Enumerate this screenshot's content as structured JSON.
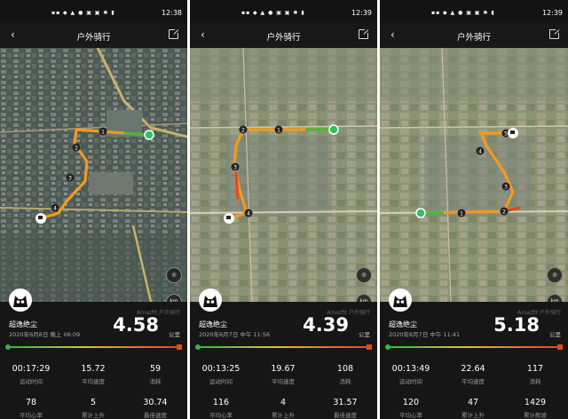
{
  "panels": [
    {
      "status": {
        "time": "12:38"
      },
      "nav": {
        "title": "户外骑行"
      },
      "user": {
        "name": "超逸绝尘",
        "datetime": "2020年6月8日 晚上 06:09"
      },
      "brand": "Amazfit 户外骑行",
      "distance": {
        "value": "4.58",
        "unit": "公里"
      },
      "stats": [
        {
          "value": "00:17:29",
          "label": "运动时间"
        },
        {
          "value": "15.72",
          "label": "平均速度"
        },
        {
          "value": "59",
          "label": "消耗"
        },
        {
          "value": "78",
          "label": "平均心率"
        },
        {
          "value": "5",
          "label": "累计上升"
        },
        {
          "value": "30.74",
          "label": "最佳速度"
        }
      ],
      "route_markers": [
        "1",
        "2",
        "3",
        "4"
      ],
      "map_buttons": {
        "km": "km"
      }
    },
    {
      "status": {
        "time": "12:39"
      },
      "nav": {
        "title": "户外骑行"
      },
      "user": {
        "name": "超逸绝尘",
        "datetime": "2020年6月7日 中午 11:56"
      },
      "brand": "Amazfit 户外骑行",
      "distance": {
        "value": "4.39",
        "unit": "公里"
      },
      "stats": [
        {
          "value": "00:13:25",
          "label": "运动时间"
        },
        {
          "value": "19.67",
          "label": "平均速度"
        },
        {
          "value": "108",
          "label": "消耗"
        },
        {
          "value": "116",
          "label": "平均心率"
        },
        {
          "value": "4",
          "label": "累计上升"
        },
        {
          "value": "31.57",
          "label": "最佳速度"
        }
      ],
      "route_markers": [
        "1",
        "2",
        "3",
        "4"
      ],
      "map_buttons": {
        "km": "km"
      }
    },
    {
      "status": {
        "time": "12:39"
      },
      "nav": {
        "title": "户外骑行"
      },
      "user": {
        "name": "超逸绝尘",
        "datetime": "2020年6月7日 中午 11:41"
      },
      "brand": "Amazfit 户外骑行",
      "distance": {
        "value": "5.18",
        "unit": "公里"
      },
      "stats": [
        {
          "value": "00:13:49",
          "label": "运动时间"
        },
        {
          "value": "22.64",
          "label": "平均速度"
        },
        {
          "value": "117",
          "label": "消耗"
        },
        {
          "value": "120",
          "label": "平均心率"
        },
        {
          "value": "47",
          "label": "累计上升"
        },
        {
          "value": "1429",
          "label": "累计爬坡"
        }
      ],
      "route_markers": [
        "1",
        "2",
        "3",
        "4",
        "5"
      ],
      "map_buttons": {
        "km": "km"
      }
    }
  ],
  "icons": [
    "back-arrow-icon",
    "share-icon",
    "globe-icon",
    "km-icon",
    "eye-icon",
    "cat-avatar-icon",
    "start-marker-icon",
    "finish-flag-icon"
  ],
  "colors": {
    "route_orange": "#f39a1e",
    "route_green": "#4fb43a",
    "start_green": "#2fbf6a",
    "bg_dark": "#161616"
  }
}
